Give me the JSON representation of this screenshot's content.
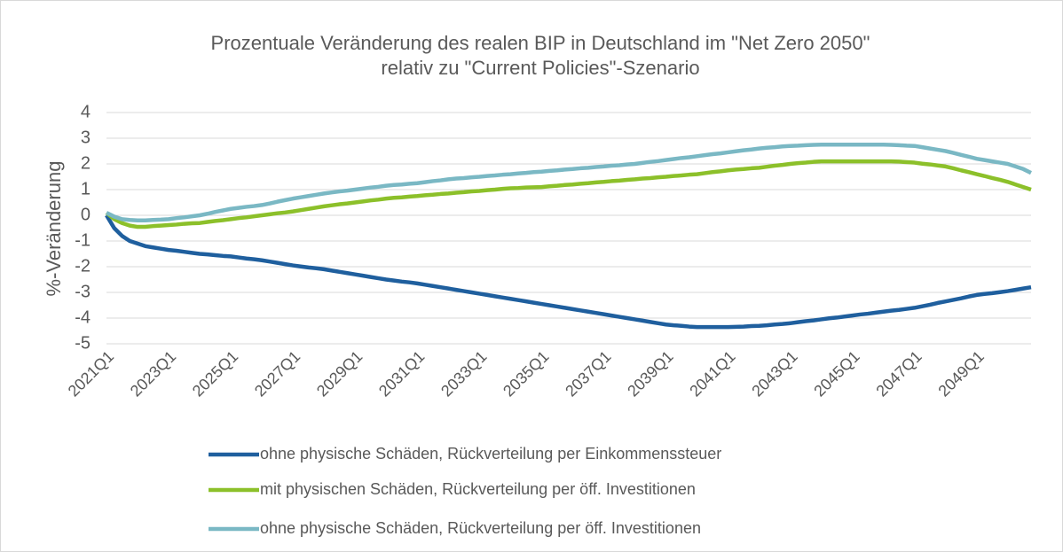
{
  "chart_data": {
    "type": "line",
    "title": [
      "Prozentuale Veränderung des realen BIP in Deutschland im \"Net Zero 2050\"",
      "relativ zu \"Current Policies\"-Szenario"
    ],
    "y_label": "%-Veränderung",
    "categories": [
      "2021Q1",
      null,
      null,
      null,
      null,
      null,
      null,
      null,
      "2023Q1",
      null,
      null,
      null,
      null,
      null,
      null,
      null,
      "2025Q1",
      null,
      null,
      null,
      null,
      null,
      null,
      null,
      "2027Q1",
      null,
      null,
      null,
      null,
      null,
      null,
      null,
      "2029Q1",
      null,
      null,
      null,
      null,
      null,
      null,
      null,
      "2031Q1",
      null,
      null,
      null,
      null,
      null,
      null,
      null,
      "2033Q1",
      null,
      null,
      null,
      null,
      null,
      null,
      null,
      "2035Q1",
      null,
      null,
      null,
      null,
      null,
      null,
      null,
      "2037Q1",
      null,
      null,
      null,
      null,
      null,
      null,
      null,
      "2039Q1",
      null,
      null,
      null,
      null,
      null,
      null,
      null,
      "2041Q1",
      null,
      null,
      null,
      null,
      null,
      null,
      null,
      "2043Q1",
      null,
      null,
      null,
      null,
      null,
      null,
      null,
      "2045Q1",
      null,
      null,
      null,
      null,
      null,
      null,
      null,
      "2047Q1",
      null,
      null,
      null,
      null,
      null,
      null,
      null,
      "2049Q1",
      null,
      null,
      null,
      null,
      null,
      null,
      null
    ],
    "series": [
      {
        "name": "ohne physische Schäden, Rückverteilung per Einkommenssteuer",
        "color": "#1f5f9e",
        "values": [
          0,
          -0.5,
          -0.8,
          -1.0,
          -1.1,
          -1.2,
          -1.25,
          -1.3,
          -1.35,
          -1.38,
          -1.42,
          -1.46,
          -1.5,
          -1.52,
          -1.55,
          -1.58,
          -1.6,
          -1.64,
          -1.68,
          -1.71,
          -1.75,
          -1.8,
          -1.85,
          -1.9,
          -1.95,
          -1.99,
          -2.03,
          -2.06,
          -2.1,
          -2.15,
          -2.2,
          -2.25,
          -2.3,
          -2.35,
          -2.4,
          -2.45,
          -2.5,
          -2.54,
          -2.58,
          -2.61,
          -2.65,
          -2.7,
          -2.75,
          -2.8,
          -2.85,
          -2.9,
          -2.95,
          -3.0,
          -3.05,
          -3.1,
          -3.15,
          -3.2,
          -3.25,
          -3.3,
          -3.35,
          -3.4,
          -3.45,
          -3.5,
          -3.55,
          -3.6,
          -3.65,
          -3.7,
          -3.75,
          -3.8,
          -3.85,
          -3.9,
          -3.95,
          -4.0,
          -4.05,
          -4.1,
          -4.15,
          -4.2,
          -4.25,
          -4.28,
          -4.3,
          -4.33,
          -4.35,
          -4.35,
          -4.35,
          -4.35,
          -4.35,
          -4.34,
          -4.33,
          -4.31,
          -4.3,
          -4.28,
          -4.25,
          -4.23,
          -4.2,
          -4.16,
          -4.12,
          -4.09,
          -4.05,
          -4.01,
          -3.98,
          -3.94,
          -3.9,
          -3.86,
          -3.83,
          -3.79,
          -3.75,
          -3.71,
          -3.68,
          -3.64,
          -3.6,
          -3.54,
          -3.48,
          -3.41,
          -3.35,
          -3.29,
          -3.23,
          -3.16,
          -3.1,
          -3.06,
          -3.03,
          -2.99,
          -2.95,
          -2.9,
          -2.85,
          -2.8
        ]
      },
      {
        "name": "mit physischen Schäden, Rückverteilung per öff. Investitionen",
        "color": "#8cc02a",
        "values": [
          0.1,
          -0.15,
          -0.3,
          -0.4,
          -0.45,
          -0.45,
          -0.42,
          -0.4,
          -0.38,
          -0.36,
          -0.33,
          -0.31,
          -0.3,
          -0.26,
          -0.22,
          -0.19,
          -0.15,
          -0.11,
          -0.08,
          -0.04,
          0,
          0.04,
          0.08,
          0.11,
          0.15,
          0.2,
          0.25,
          0.3,
          0.35,
          0.39,
          0.43,
          0.46,
          0.5,
          0.54,
          0.58,
          0.61,
          0.65,
          0.68,
          0.7,
          0.73,
          0.75,
          0.78,
          0.8,
          0.83,
          0.85,
          0.88,
          0.9,
          0.93,
          0.95,
          0.98,
          1.0,
          1.03,
          1.05,
          1.06,
          1.08,
          1.09,
          1.1,
          1.13,
          1.15,
          1.18,
          1.2,
          1.23,
          1.25,
          1.28,
          1.3,
          1.33,
          1.35,
          1.38,
          1.4,
          1.43,
          1.45,
          1.48,
          1.5,
          1.53,
          1.55,
          1.58,
          1.6,
          1.64,
          1.68,
          1.71,
          1.75,
          1.78,
          1.8,
          1.83,
          1.85,
          1.89,
          1.93,
          1.96,
          2.0,
          2.03,
          2.05,
          2.08,
          2.1,
          2.1,
          2.1,
          2.1,
          2.1,
          2.1,
          2.1,
          2.1,
          2.1,
          2.1,
          2.09,
          2.07,
          2.05,
          2.01,
          1.98,
          1.94,
          1.9,
          1.83,
          1.75,
          1.68,
          1.6,
          1.53,
          1.45,
          1.38,
          1.3,
          1.2,
          1.1,
          1.0
        ]
      },
      {
        "name": "ohne physische Schäden, Rückverteilung per öff. Investitionen",
        "color": "#7ab8c4",
        "values": [
          0.1,
          -0.05,
          -0.15,
          -0.18,
          -0.2,
          -0.2,
          -0.18,
          -0.17,
          -0.15,
          -0.11,
          -0.08,
          -0.04,
          0,
          0.06,
          0.13,
          0.19,
          0.25,
          0.29,
          0.33,
          0.36,
          0.4,
          0.46,
          0.53,
          0.59,
          0.65,
          0.7,
          0.75,
          0.8,
          0.85,
          0.89,
          0.93,
          0.96,
          1.0,
          1.04,
          1.08,
          1.11,
          1.15,
          1.18,
          1.2,
          1.23,
          1.25,
          1.29,
          1.33,
          1.36,
          1.4,
          1.43,
          1.45,
          1.48,
          1.5,
          1.53,
          1.55,
          1.58,
          1.6,
          1.63,
          1.65,
          1.68,
          1.7,
          1.73,
          1.75,
          1.78,
          1.8,
          1.83,
          1.85,
          1.88,
          1.9,
          1.93,
          1.95,
          1.98,
          2.0,
          2.04,
          2.08,
          2.11,
          2.15,
          2.19,
          2.23,
          2.26,
          2.3,
          2.34,
          2.38,
          2.41,
          2.45,
          2.49,
          2.53,
          2.56,
          2.6,
          2.63,
          2.65,
          2.68,
          2.7,
          2.71,
          2.73,
          2.74,
          2.75,
          2.75,
          2.75,
          2.75,
          2.75,
          2.75,
          2.75,
          2.75,
          2.75,
          2.74,
          2.73,
          2.71,
          2.7,
          2.65,
          2.6,
          2.55,
          2.5,
          2.43,
          2.35,
          2.28,
          2.2,
          2.15,
          2.1,
          2.05,
          2.0,
          1.9,
          1.8,
          1.65
        ]
      }
    ],
    "ylim": [
      -5,
      4
    ],
    "yticks": [
      -5,
      -4,
      -3,
      -2,
      -1,
      0,
      1,
      2,
      3,
      4
    ],
    "grid": true,
    "legend": "bottom"
  }
}
